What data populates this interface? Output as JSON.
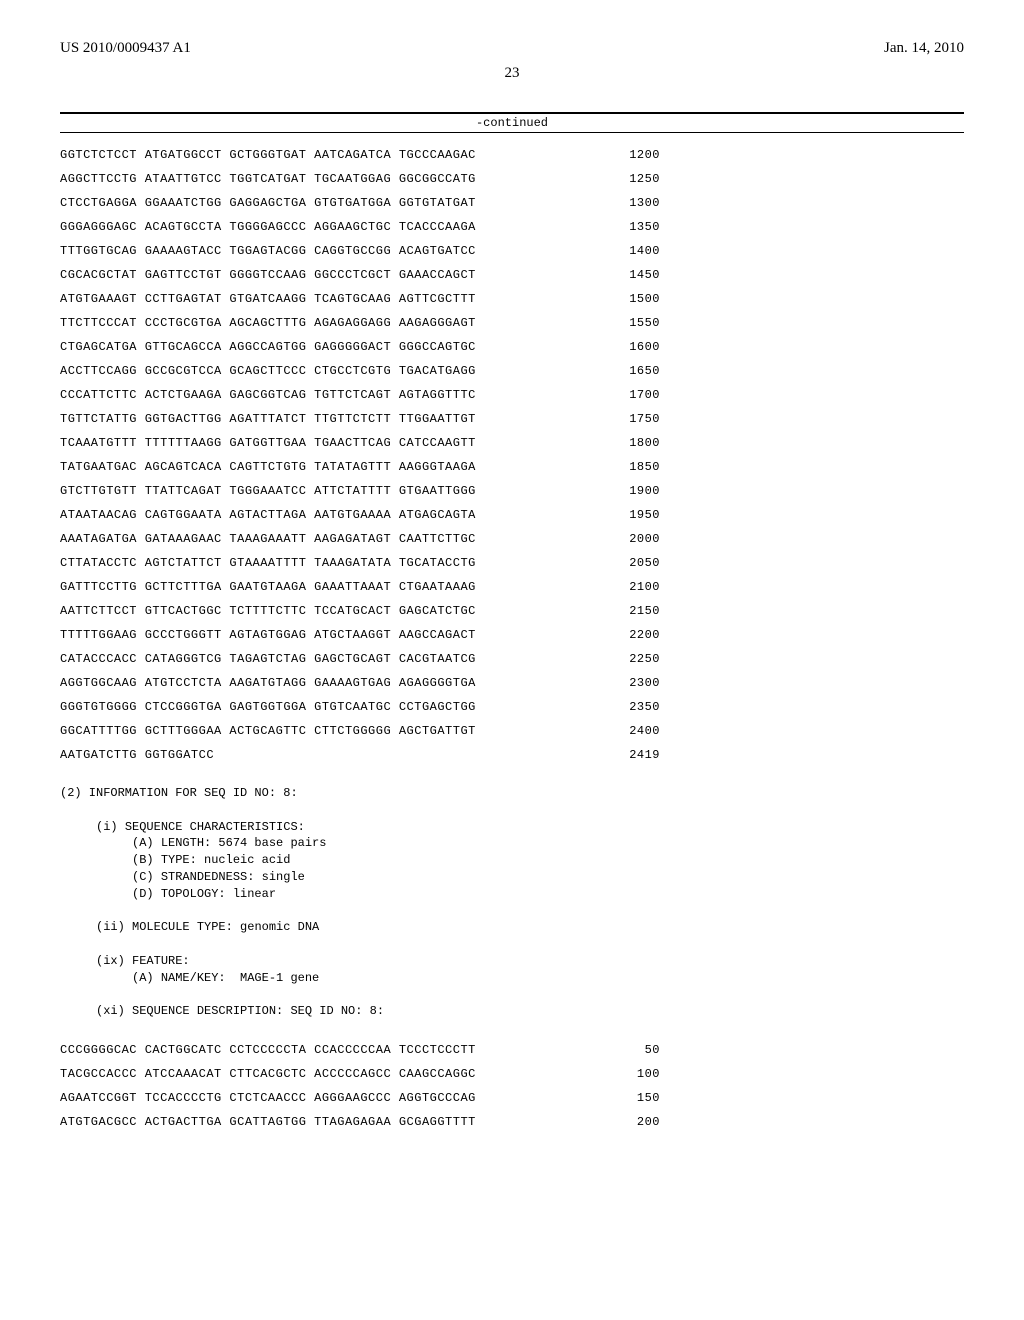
{
  "header": {
    "left": "US 2010/0009437 A1",
    "right": "Jan. 14, 2010",
    "page": "23"
  },
  "continued_label": "-continued",
  "seq7": {
    "rows": [
      {
        "t": "GGTCTCTCCT ATGATGGCCT GCTGGGTGAT AATCAGATCA TGCCCAAGAC",
        "n": "1200"
      },
      {
        "t": "AGGCTTCCTG ATAATTGTCC TGGTCATGAT TGCAATGGAG GGCGGCCATG",
        "n": "1250"
      },
      {
        "t": "CTCCTGAGGA GGAAATCTGG GAGGAGCTGA GTGTGATGGA GGTGTATGAT",
        "n": "1300"
      },
      {
        "t": "GGGAGGGAGC ACAGTGCCTA TGGGGAGCCC AGGAAGCTGC TCACCCAAGA",
        "n": "1350"
      },
      {
        "t": "TTTGGTGCAG GAAAAGTACC TGGAGTACGG CAGGTGCCGG ACAGTGATCC",
        "n": "1400"
      },
      {
        "t": "CGCACGCTAT GAGTTCCTGT GGGGTCCAAG GGCCCTCGCT GAAACCAGCT",
        "n": "1450"
      },
      {
        "t": "ATGTGAAAGT CCTTGAGTAT GTGATCAAGG TCAGTGCAAG AGTTCGCTTT",
        "n": "1500"
      },
      {
        "t": "TTCTTCCCAT CCCTGCGTGA AGCAGCTTTG AGAGAGGAGG AAGAGGGAGT",
        "n": "1550"
      },
      {
        "t": "CTGAGCATGA GTTGCAGCCA AGGCCAGTGG GAGGGGGACT GGGCCAGTGC",
        "n": "1600"
      },
      {
        "t": "ACCTTCCAGG GCCGCGTCCA GCAGCTTCCC CTGCCTCGTG TGACATGAGG",
        "n": "1650"
      },
      {
        "t": "CCCATTCTTC ACTCTGAAGA GAGCGGTCAG TGTTCTCAGT AGTAGGTTTC",
        "n": "1700"
      },
      {
        "t": "TGTTCTATTG GGTGACTTGG AGATTTATCT TTGTTCTCTT TTGGAATTGT",
        "n": "1750"
      },
      {
        "t": "TCAAATGTTT TTTTTTAAGG GATGGTTGAA TGAACTTCAG CATCCAAGTT",
        "n": "1800"
      },
      {
        "t": "TATGAATGAC AGCAGTCACA CAGTTCTGTG TATATAGTTT AAGGGTAAGA",
        "n": "1850"
      },
      {
        "t": "GTCTTGTGTT TTATTCAGAT TGGGAAATCC ATTCTATTTT GTGAATTGGG",
        "n": "1900"
      },
      {
        "t": "ATAATAACAG CAGTGGAATA AGTACTTAGA AATGTGAAAA ATGAGCAGTA",
        "n": "1950"
      },
      {
        "t": "AAATAGATGA GATAAAGAAC TAAAGAAATT AAGAGATAGT CAATTCTTGC",
        "n": "2000"
      },
      {
        "t": "CTTATACCTC AGTCTATTCT GTAAAATTTT TAAAGATATA TGCATACCTG",
        "n": "2050"
      },
      {
        "t": "GATTTCCTTG GCTTCTTTGA GAATGTAAGA GAAATTAAAT CTGAATAAAG",
        "n": "2100"
      },
      {
        "t": "AATTCTTCCT GTTCACTGGC TCTTTTCTTC TCCATGCACT GAGCATCTGC",
        "n": "2150"
      },
      {
        "t": "TTTTTGGAAG GCCCTGGGTT AGTAGTGGAG ATGCTAAGGT AAGCCAGACT",
        "n": "2200"
      },
      {
        "t": "CATACCCACC CATAGGGTCG TAGAGTCTAG GAGCTGCAGT CACGTAATCG",
        "n": "2250"
      },
      {
        "t": "AGGTGGCAAG ATGTCCTCTA AAGATGTAGG GAAAAGTGAG AGAGGGGTGA",
        "n": "2300"
      },
      {
        "t": "GGGTGTGGGG CTCCGGGTGA GAGTGGTGGA GTGTCAATGC CCTGAGCTGG",
        "n": "2350"
      },
      {
        "t": "GGCATTTTGG GCTTTGGGAA ACTGCAGTTC CTTCTGGGGG AGCTGATTGT",
        "n": "2400"
      },
      {
        "t": "AATGATCTTG GGTGGATCC",
        "n": "2419"
      }
    ]
  },
  "info8": {
    "header": "(2) INFORMATION FOR SEQ ID NO: 8:",
    "chars_title": "(i) SEQUENCE CHARACTERISTICS:",
    "char_a": "(A) LENGTH: 5674 base pairs",
    "char_b": "(B) TYPE: nucleic acid",
    "char_c": "(C) STRANDEDNESS: single",
    "char_d": "(D) TOPOLOGY: linear",
    "mol": "(ii) MOLECULE TYPE: genomic DNA",
    "feat": "(ix) FEATURE:",
    "feat_a": "(A) NAME/KEY:  MAGE-1 gene",
    "desc": "(xi) SEQUENCE DESCRIPTION: SEQ ID NO: 8:"
  },
  "seq8": {
    "rows": [
      {
        "t": "CCCGGGGCAC CACTGGCATC CCTCCCCCTA CCACCCCCAA TCCCTCCCTT",
        "n": "50"
      },
      {
        "t": "TACGCCACCC ATCCAAACAT CTTCACGCTC ACCCCCAGCC CAAGCCAGGC",
        "n": "100"
      },
      {
        "t": "AGAATCCGGT TCCACCCCTG CTCTCAACCC AGGGAAGCCC AGGTGCCCAG",
        "n": "150"
      },
      {
        "t": "ATGTGACGCC ACTGACTTGA GCATTAGTGG TTAGAGAGAA GCGAGGTTTT",
        "n": "200"
      }
    ]
  }
}
